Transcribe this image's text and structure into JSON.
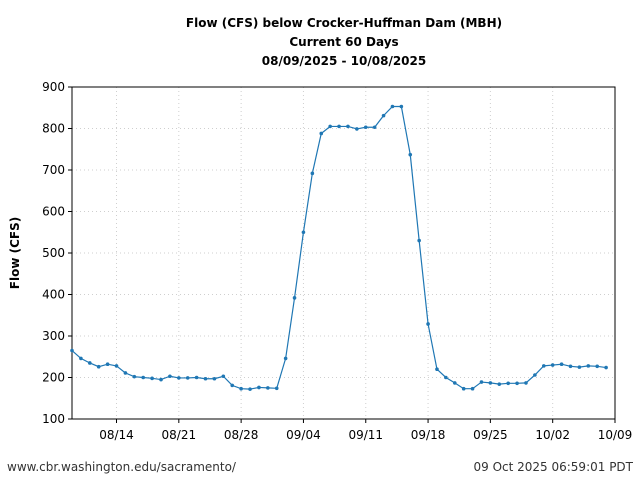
{
  "chart_data": {
    "type": "line",
    "title_lines": [
      "Flow (CFS) below Crocker-Huffman Dam (MBH)",
      "Current 60 Days",
      "08/09/2025 - 10/08/2025"
    ],
    "ylabel": "Flow (CFS)",
    "xlabel": "",
    "ylim": [
      100,
      900
    ],
    "xlim": [
      "2025-08-09",
      "2025-10-09"
    ],
    "yticks": [
      100,
      200,
      300,
      400,
      500,
      600,
      700,
      800,
      900
    ],
    "xticks": [
      {
        "date": "2025-08-14",
        "label": "08/14"
      },
      {
        "date": "2025-08-21",
        "label": "08/21"
      },
      {
        "date": "2025-08-28",
        "label": "08/28"
      },
      {
        "date": "2025-09-04",
        "label": "09/04"
      },
      {
        "date": "2025-09-11",
        "label": "09/11"
      },
      {
        "date": "2025-09-18",
        "label": "09/18"
      },
      {
        "date": "2025-09-25",
        "label": "09/25"
      },
      {
        "date": "2025-10-02",
        "label": "10/02"
      },
      {
        "date": "2025-10-09",
        "label": "10/09"
      }
    ],
    "grid": true,
    "line_color": "#1f77b4",
    "x": [
      "2025-08-09",
      "2025-08-10",
      "2025-08-11",
      "2025-08-12",
      "2025-08-13",
      "2025-08-14",
      "2025-08-15",
      "2025-08-16",
      "2025-08-17",
      "2025-08-18",
      "2025-08-19",
      "2025-08-20",
      "2025-08-21",
      "2025-08-22",
      "2025-08-23",
      "2025-08-24",
      "2025-08-25",
      "2025-08-26",
      "2025-08-27",
      "2025-08-28",
      "2025-08-29",
      "2025-08-30",
      "2025-08-31",
      "2025-09-01",
      "2025-09-02",
      "2025-09-03",
      "2025-09-04",
      "2025-09-05",
      "2025-09-06",
      "2025-09-07",
      "2025-09-08",
      "2025-09-09",
      "2025-09-10",
      "2025-09-11",
      "2025-09-12",
      "2025-09-13",
      "2025-09-14",
      "2025-09-15",
      "2025-09-16",
      "2025-09-17",
      "2025-09-18",
      "2025-09-19",
      "2025-09-20",
      "2025-09-21",
      "2025-09-22",
      "2025-09-23",
      "2025-09-24",
      "2025-09-25",
      "2025-09-26",
      "2025-09-27",
      "2025-09-28",
      "2025-09-29",
      "2025-09-30",
      "2025-10-01",
      "2025-10-02",
      "2025-10-03",
      "2025-10-04",
      "2025-10-05",
      "2025-10-06",
      "2025-10-07",
      "2025-10-08"
    ],
    "values": [
      265,
      246,
      235,
      226,
      232,
      228,
      211,
      202,
      200,
      198,
      195,
      203,
      199,
      199,
      200,
      197,
      197,
      203,
      181,
      173,
      172,
      176,
      175,
      174,
      246,
      392,
      550,
      692,
      788,
      805,
      805,
      805,
      799,
      803,
      803,
      831,
      853,
      853,
      737,
      530,
      329,
      220,
      200,
      187,
      173,
      173,
      189,
      187,
      184,
      186,
      186,
      187,
      206,
      228,
      230,
      232,
      227,
      225,
      228,
      227,
      224
    ]
  },
  "footer": {
    "left": "www.cbr.washington.edu/sacramento/",
    "right": "09 Oct 2025 06:59:01 PDT"
  }
}
